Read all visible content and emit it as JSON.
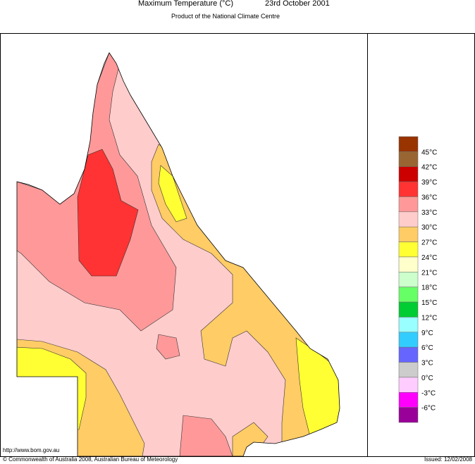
{
  "header": {
    "title": "Maximum Temperature (°C)",
    "date": "23rd October 2001",
    "subtitle": "Product of the National Climate Centre"
  },
  "legend": {
    "labels": [
      "45°C",
      "42°C",
      "39°C",
      "36°C",
      "33°C",
      "30°C",
      "27°C",
      "24°C",
      "21°C",
      "18°C",
      "15°C",
      "12°C",
      "9°C",
      "6°C",
      "3°C",
      "0°C",
      "-3°C",
      "-6°C"
    ],
    "colors": [
      "#993300",
      "#996633",
      "#cc0000",
      "#ff3333",
      "#ff9999",
      "#ffcccc",
      "#ffcc66",
      "#ffff33",
      "#ffffcc",
      "#ccffcc",
      "#66ff66",
      "#00cc33",
      "#99ffff",
      "#33ccff",
      "#6666ff",
      "#cccccc",
      "#ffccff",
      "#ff00ff",
      "#990099"
    ]
  },
  "footer": {
    "url": "http://www.bom.gov.au",
    "copyright": "© Commonwealth of Australia 2008, Australian Bureau of Meteorology",
    "issued": "Issued: 12/02/2008"
  }
}
